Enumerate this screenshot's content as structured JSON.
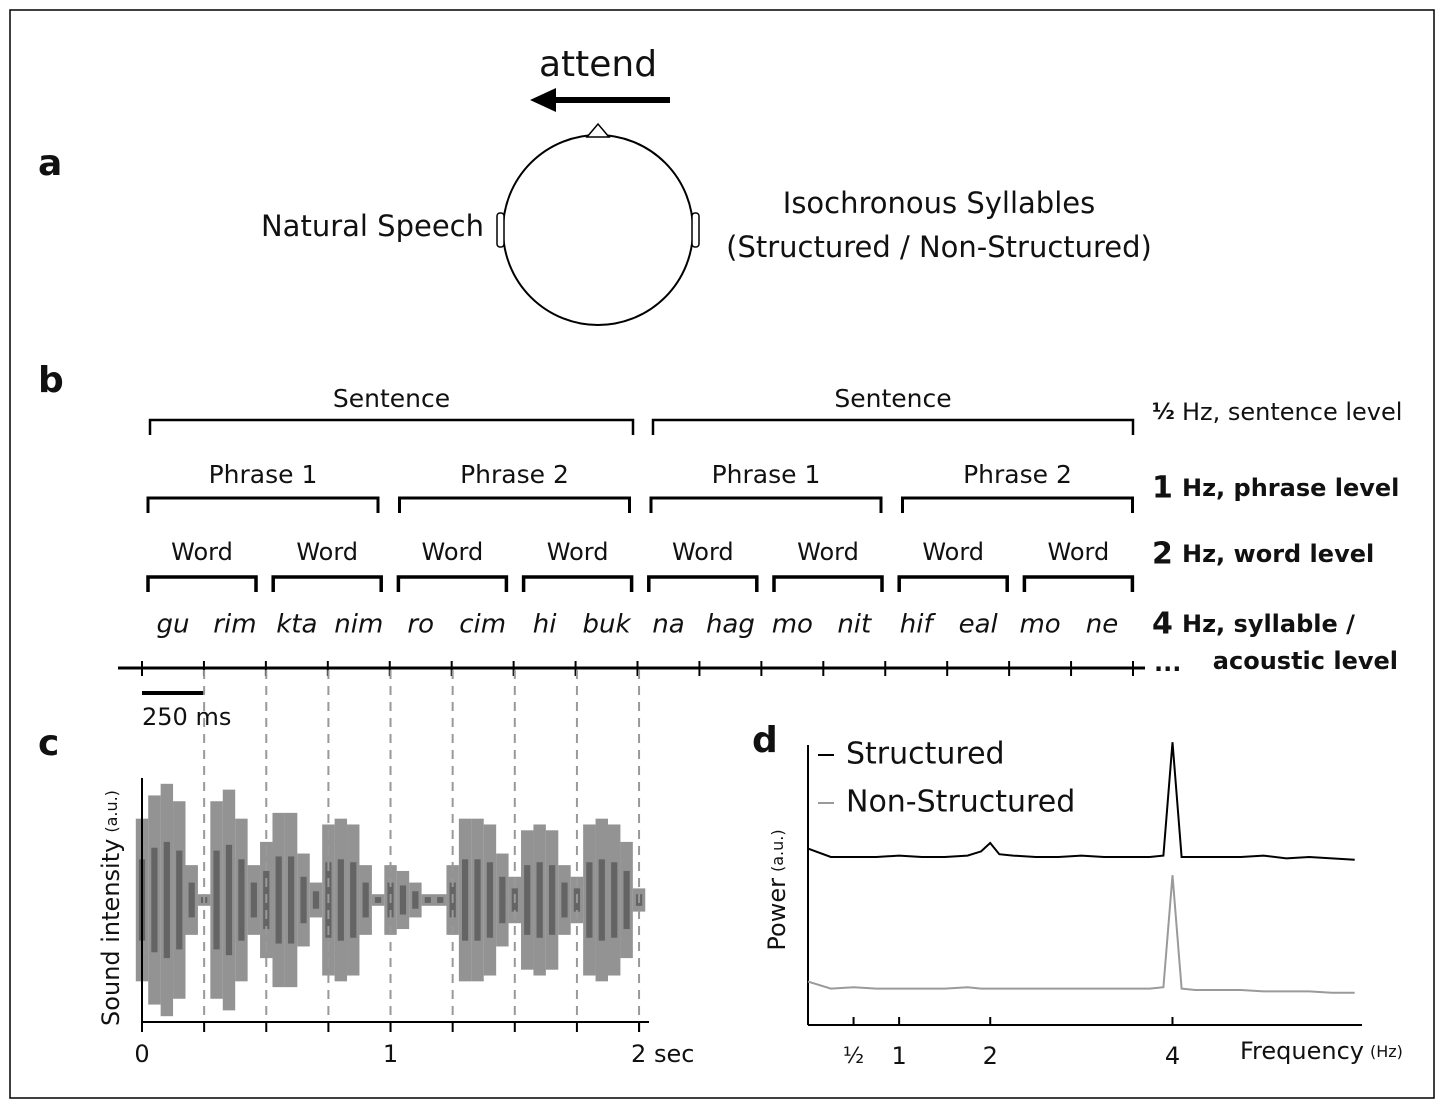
{
  "panel_labels": [
    "a",
    "b",
    "c",
    "d"
  ],
  "panel_a": {
    "attend": "attend",
    "left_ear": "Natural Speech",
    "right_ear": [
      "Isochronous Syllables",
      "(Structured / Non-Structured)"
    ]
  },
  "panel_b": {
    "sentences": [
      "Sentence",
      "Sentence"
    ],
    "phrases": [
      "Phrase 1",
      "Phrase 2",
      "Phrase 1",
      "Phrase 2"
    ],
    "words": [
      "Word",
      "Word",
      "Word",
      "Word",
      "Word",
      "Word",
      "Word",
      "Word"
    ],
    "syllables": [
      "gu",
      "rim",
      "kta",
      "nim",
      "ro",
      "cim",
      "hi",
      "buk",
      "na",
      "hag",
      "mo",
      "nit",
      "hif",
      "eal",
      "mo",
      "ne"
    ],
    "levels": [
      {
        "rate": "½",
        "lines": [
          "Hz, sentence level"
        ]
      },
      {
        "rate": "1",
        "lines": [
          "Hz, phrase level"
        ]
      },
      {
        "rate": "2",
        "lines": [
          "Hz, word level"
        ]
      },
      {
        "rate": "4",
        "lines": [
          "Hz, syllable /",
          "acoustic level"
        ]
      }
    ],
    "ellipsis": "...",
    "scale_bar": "250 ms"
  },
  "chart_data": [
    {
      "type": "area",
      "x": [
        0,
        0.05,
        0.1,
        0.15,
        0.2,
        0.25,
        0.3,
        0.35,
        0.4,
        0.45,
        0.5,
        0.55,
        0.6,
        0.65,
        0.7,
        0.75,
        0.8,
        0.85,
        0.9,
        0.95,
        1.0,
        1.05,
        1.1,
        1.15,
        1.2,
        1.25,
        1.3,
        1.35,
        1.4,
        1.45,
        1.5,
        1.55,
        1.6,
        1.65,
        1.7,
        1.75,
        1.8,
        1.85,
        1.9,
        1.95,
        2.0
      ],
      "values": [
        0.7,
        0.9,
        1.0,
        0.85,
        0.3,
        0.05,
        0.85,
        0.95,
        0.7,
        0.3,
        0.5,
        0.75,
        0.75,
        0.4,
        0.15,
        0.65,
        0.7,
        0.65,
        0.3,
        0.05,
        0.3,
        0.25,
        0.15,
        0.05,
        0.05,
        0.3,
        0.7,
        0.7,
        0.65,
        0.4,
        0.2,
        0.6,
        0.65,
        0.6,
        0.3,
        0.2,
        0.65,
        0.7,
        0.65,
        0.5,
        0.1
      ],
      "color": "#808080",
      "xlim": [
        0,
        2.04
      ],
      "ylim": [
        -1.05,
        1.05
      ],
      "xticks": [
        0,
        1,
        {
          "value": 2,
          "label": "2 sec"
        }
      ],
      "boundaries": [
        0.25,
        0.5,
        0.75,
        1,
        1.25,
        1.5,
        1.75,
        2
      ],
      "ylabel": "Sound intensity",
      "ylabel_unit": "(a.u.)"
    },
    {
      "type": "line",
      "x": [
        0,
        0.25,
        0.5,
        0.75,
        1,
        1.25,
        1.5,
        1.75,
        1.9,
        2,
        2.1,
        2.25,
        2.5,
        2.75,
        3,
        3.25,
        3.5,
        3.75,
        3.9,
        4,
        4.1,
        4.25,
        4.5,
        4.75,
        5,
        5.25,
        5.5,
        5.75,
        6
      ],
      "series": [
        {
          "name": "Structured",
          "color": "#000000",
          "values": [
            6.3,
            6.0,
            6.0,
            6.0,
            6.05,
            6.0,
            6.0,
            6.05,
            6.2,
            6.5,
            6.1,
            6.05,
            6.0,
            6.0,
            6.05,
            6.0,
            6.0,
            6.0,
            6.05,
            10.1,
            6.0,
            6.0,
            6.0,
            6.0,
            6.05,
            5.95,
            6.0,
            5.95,
            5.9
          ]
        },
        {
          "name": "Non-Structured",
          "color": "#9a9a9a",
          "values": [
            1.55,
            1.3,
            1.35,
            1.3,
            1.3,
            1.3,
            1.3,
            1.35,
            1.3,
            1.3,
            1.3,
            1.3,
            1.3,
            1.3,
            1.3,
            1.3,
            1.3,
            1.3,
            1.35,
            5.35,
            1.3,
            1.25,
            1.25,
            1.25,
            1.2,
            1.2,
            1.2,
            1.15,
            1.15
          ]
        }
      ],
      "xlim": [
        0,
        6.08
      ],
      "ylim": [
        0,
        10.5
      ],
      "xticks": [
        {
          "value": 0.5,
          "label": "½"
        },
        1,
        2,
        4
      ],
      "xlabel": "Frequency",
      "xlabel_unit": "(Hz)",
      "ylabel": "Power",
      "ylabel_unit": "(a.u.)"
    }
  ]
}
